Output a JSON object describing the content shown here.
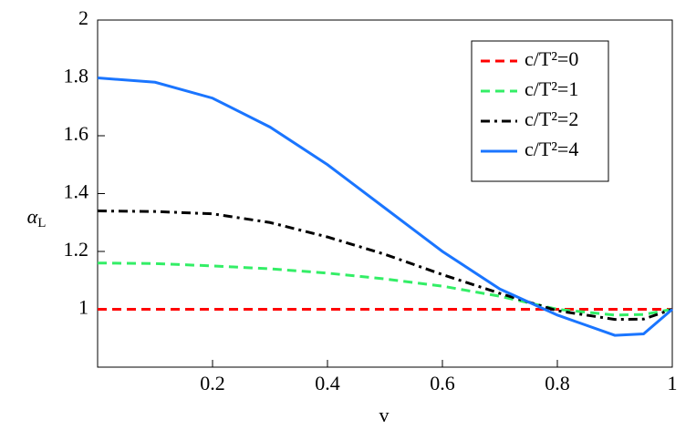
{
  "chart_data": {
    "type": "line",
    "x_label": "v",
    "y_label": {
      "symbol": "α",
      "subscript": "L"
    },
    "x": [
      0,
      0.1,
      0.2,
      0.3,
      0.4,
      0.5,
      0.6,
      0.7,
      0.8,
      0.9,
      0.95,
      1
    ],
    "series": [
      {
        "name": "c/T²=0",
        "color": "#ff0000",
        "style": "dashed",
        "values": [
          1,
          1,
          1,
          1,
          1,
          1,
          1,
          1,
          1,
          1,
          1,
          1
        ]
      },
      {
        "name": "c/T²=1",
        "color": "#33ee66",
        "style": "dashed",
        "values": [
          1.16,
          1.158,
          1.15,
          1.14,
          1.125,
          1.105,
          1.08,
          1.045,
          1.0,
          0.98,
          0.982,
          1.0
        ]
      },
      {
        "name": "c/T²=2",
        "color": "#000000",
        "style": "dashdot",
        "values": [
          1.34,
          1.338,
          1.33,
          1.3,
          1.25,
          1.19,
          1.12,
          1.055,
          0.995,
          0.965,
          0.966,
          1.0
        ]
      },
      {
        "name": "c/T²=4",
        "color": "#1a75ff",
        "style": "solid",
        "values": [
          1.8,
          1.785,
          1.73,
          1.63,
          1.5,
          1.35,
          1.2,
          1.07,
          0.98,
          0.91,
          0.915,
          1.0
        ]
      }
    ],
    "xlim": [
      0,
      1
    ],
    "ylim": [
      0.8,
      2
    ],
    "xticks": [
      0.2,
      0.4,
      0.6,
      0.8,
      1
    ],
    "yticks": [
      1,
      1.2,
      1.4,
      1.6,
      1.8,
      2
    ],
    "grid": false,
    "legend": "upper right"
  }
}
